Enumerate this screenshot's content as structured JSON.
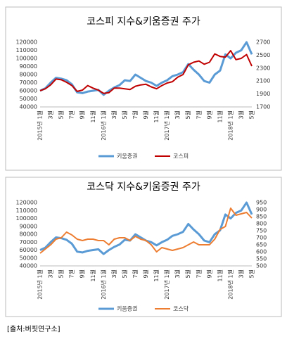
{
  "chart_data": [
    {
      "type": "line",
      "title": "코스피 지수&키움증권 주가",
      "categories": [
        "2015년 1월",
        null,
        "3월",
        null,
        "5월",
        null,
        "7월",
        null,
        "9월",
        null,
        "11월",
        null,
        "2016년 1월",
        null,
        "3월",
        null,
        "5월",
        null,
        "7월",
        null,
        "9월",
        null,
        "11월",
        null,
        "2017년 1월",
        null,
        "3월",
        null,
        "5월",
        null,
        "7월",
        null,
        "9월",
        null,
        "11월",
        null,
        "2018년 1월",
        null,
        "3월",
        null,
        "5월"
      ],
      "series": [
        {
          "name": "키움증권",
          "color": "#5b9bd5",
          "values": [
            60000,
            63000,
            70000,
            76000,
            75000,
            73000,
            68000,
            58000,
            57000,
            59000,
            60000,
            61000,
            55000,
            60000,
            64000,
            67000,
            73000,
            72000,
            80000,
            76000,
            72000,
            70000,
            66000,
            70000,
            73000,
            78000,
            80000,
            83000,
            93000,
            86000,
            80000,
            72000,
            70000,
            80000,
            85000,
            105000,
            100000,
            107000,
            110000,
            120000,
            105000
          ]
        },
        {
          "name": "코스피",
          "color": "#c00000",
          "axis": "y2",
          "values": [
            1950,
            1980,
            2040,
            2130,
            2120,
            2080,
            2030,
            1940,
            1960,
            2030,
            1990,
            1960,
            1910,
            1920,
            1990,
            1990,
            1980,
            1970,
            2020,
            2040,
            2050,
            2010,
            1980,
            2030,
            2070,
            2090,
            2160,
            2200,
            2350,
            2390,
            2410,
            2360,
            2390,
            2520,
            2480,
            2470,
            2570,
            2430,
            2450,
            2510,
            2330
          ]
        }
      ],
      "ylim": [
        40000,
        120000
      ],
      "yticks": [
        40000,
        50000,
        60000,
        70000,
        80000,
        90000,
        100000,
        110000,
        120000
      ],
      "y2lim": [
        1700,
        2700
      ],
      "y2ticks": [
        1700,
        1900,
        2100,
        2300,
        2500,
        2700
      ],
      "legend": "bottom"
    },
    {
      "type": "line",
      "title": "코스닥 지수&키움증권 주가",
      "categories": [
        "2015년 1월",
        null,
        "3월",
        null,
        "5월",
        null,
        "7월",
        null,
        "9월",
        null,
        "11월",
        null,
        "2016년 1월",
        null,
        "3월",
        null,
        "5월",
        null,
        "7월",
        null,
        "9월",
        null,
        "11월",
        null,
        "2017년 1월",
        null,
        "3월",
        null,
        "5월",
        null,
        "7월",
        null,
        "9월",
        null,
        "11월",
        null,
        "2018년 1월",
        null,
        "3월",
        null,
        "5월"
      ],
      "series": [
        {
          "name": "키움증권",
          "color": "#5b9bd5",
          "values": [
            60000,
            63000,
            70000,
            76000,
            75000,
            73000,
            68000,
            58000,
            57000,
            59000,
            60000,
            61000,
            55000,
            60000,
            64000,
            67000,
            73000,
            72000,
            80000,
            76000,
            72000,
            70000,
            66000,
            70000,
            73000,
            78000,
            80000,
            83000,
            93000,
            86000,
            80000,
            72000,
            70000,
            80000,
            85000,
            105000,
            100000,
            107000,
            110000,
            120000,
            105000
          ]
        },
        {
          "name": "코스닥",
          "color": "#ed7d31",
          "axis": "y2",
          "values": [
            590,
            620,
            650,
            690,
            700,
            740,
            720,
            690,
            680,
            690,
            690,
            680,
            680,
            650,
            690,
            700,
            700,
            680,
            710,
            690,
            680,
            650,
            600,
            630,
            620,
            610,
            620,
            630,
            650,
            670,
            650,
            650,
            650,
            690,
            760,
            780,
            910,
            860,
            870,
            880,
            840
          ]
        }
      ],
      "ylim": [
        40000,
        120000
      ],
      "yticks": [
        40000,
        50000,
        60000,
        70000,
        80000,
        90000,
        100000,
        110000,
        120000
      ],
      "y2lim": [
        500,
        950
      ],
      "y2ticks": [
        500,
        550,
        600,
        650,
        700,
        750,
        800,
        850,
        900,
        950
      ],
      "legend": "bottom"
    }
  ],
  "source": "[출처:버핏연구소]"
}
